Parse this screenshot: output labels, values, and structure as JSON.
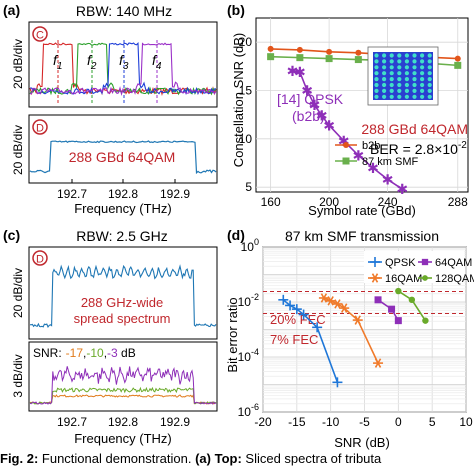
{
  "panels": {
    "a": {
      "letter": "(a)",
      "rbw": "RBW: 140 MHz",
      "top_badge": "C",
      "bottom_badge": "D",
      "ylabel_top": "20 dB/div",
      "ylabel_bottom": "20 dB/div",
      "xlabel": "Frequency (THz)",
      "xticks": [
        "192.7",
        "192.8",
        "192.9"
      ],
      "tones": [
        {
          "label": "f",
          "sub": "1",
          "color": "#d62728"
        },
        {
          "label": "f",
          "sub": "2",
          "color": "#2ca02c"
        },
        {
          "label": "f",
          "sub": "3",
          "color": "#1f3fd8"
        },
        {
          "label": "f",
          "sub": "4",
          "color": "#9b30c8"
        }
      ],
      "bottom_label": "288 GBd 64QAM",
      "bottom_label_color": "#c0272d",
      "trace_color": "#1f77b4"
    },
    "b": {
      "letter": "(b)",
      "xlabel": "Symbol rate (GBd)",
      "ylabel": "Constellation SNR (dB)",
      "xticks": [
        "160",
        "200",
        "240",
        "288"
      ],
      "yticks": [
        "5",
        "10",
        "15",
        "20"
      ],
      "annotation_qpsk_1": "[14] QPSK",
      "annotation_qpsk_2": "(b2b)",
      "annotation_qpsk_color": "#8e2fb8",
      "annotation_qam": "288 GBd 64QAM",
      "annotation_qam_color": "#c0272d",
      "ber_prefix": "BER = 2.8×10",
      "ber_exp": "-2"
    },
    "c": {
      "letter": "(c)",
      "rbw": "RBW: 2.5 GHz",
      "top_badge": "D",
      "ylabel_top": "20 dB/div",
      "ylabel_bottom": "3 dB/div",
      "xlabel": "Frequency (THz)",
      "xticks": [
        "192.7",
        "192.8",
        "192.9"
      ],
      "top_label_1": "288 GHz-wide",
      "top_label_2": "spread spectrum",
      "top_label_color": "#c0272d",
      "snr_prefix": "SNR:",
      "snr_values": [
        {
          "text": "-17",
          "color": "#e07a1a"
        },
        {
          "text": ",",
          "color": "#000000"
        },
        {
          "text": "-10",
          "color": "#6aaa2a"
        },
        {
          "text": ",",
          "color": "#000000"
        },
        {
          "text": "-3",
          "color": "#8e2fb8"
        },
        {
          "text": " dB",
          "color": "#000000"
        }
      ]
    },
    "d": {
      "letter": "(d)",
      "fec_20": "20% FEC",
      "fec_7": "7% FEC",
      "fec_color": "#c0272d"
    }
  },
  "caption": {
    "prefix": "Fig. 2:",
    "middle": " Functional demonstration. ",
    "bold": "(a) Top:",
    "suffix": " Sliced spectra of tributa"
  },
  "chart_data": [
    {
      "type": "line",
      "title": "",
      "xlabel": "Symbol rate (GBd)",
      "ylabel": "Constellation SNR (dB)",
      "xlim": [
        150,
        295
      ],
      "ylim": [
        4.5,
        22.5
      ],
      "grid": true,
      "legend_position": "center-right",
      "series": [
        {
          "name": "b2b",
          "color": "#e2551b",
          "marker": "circle",
          "x": [
            160,
            180,
            200,
            220,
            240,
            260,
            288
          ],
          "y": [
            19.3,
            19.2,
            19.0,
            18.9,
            18.7,
            18.5,
            18.3
          ]
        },
        {
          "name": "87 km SMF",
          "color": "#6ab04c",
          "marker": "square",
          "x": [
            160,
            180,
            200,
            220,
            240,
            260,
            288
          ],
          "y": [
            18.5,
            18.4,
            18.3,
            18.2,
            18.1,
            17.9,
            17.6
          ]
        },
        {
          "name": "[14] QPSK (b2b)",
          "color": "#8e2fb8",
          "marker": "star",
          "x": [
            175,
            180,
            185,
            190,
            195,
            200,
            210,
            220,
            230,
            240,
            250
          ],
          "y": [
            17.0,
            16.9,
            15.0,
            13.5,
            12.4,
            11.4,
            9.8,
            8.3,
            7.0,
            5.8,
            4.8
          ]
        }
      ]
    },
    {
      "type": "line",
      "title": "87 km SMF transmission",
      "xlabel": "SNR (dB)",
      "ylabel": "Bit error ratio",
      "xlim": [
        -20,
        10
      ],
      "ylim": [
        1e-06,
        1
      ],
      "yscale": "log",
      "xticks": [
        -20,
        -15,
        -10,
        -5,
        0,
        5,
        10
      ],
      "yticks": [
        "10^0",
        "10^-2",
        "10^-4",
        "10^-6"
      ],
      "grid": true,
      "legend_position": "top-right",
      "thresholds": [
        {
          "name": "20% FEC",
          "y": 0.024
        },
        {
          "name": "7% FEC",
          "y": 0.0038
        }
      ],
      "series": [
        {
          "name": "QPSK",
          "color": "#1f77d8",
          "marker": "plus",
          "x": [
            -17,
            -16,
            -15,
            -14,
            -12,
            -9
          ],
          "y": [
            0.012,
            0.0075,
            0.0055,
            0.0035,
            0.0012,
            1.2e-05
          ]
        },
        {
          "name": "16QAM",
          "color": "#f07a2a",
          "marker": "star",
          "x": [
            -11,
            -10,
            -9,
            -8,
            -6,
            -3
          ],
          "y": [
            0.014,
            0.011,
            0.0085,
            0.006,
            0.0022,
            6e-05
          ]
        },
        {
          "name": "64QAM",
          "color": "#8e2fb8",
          "marker": "square",
          "x": [
            -3,
            -1,
            0
          ],
          "y": [
            0.012,
            0.0055,
            0.0021
          ]
        },
        {
          "name": "128QAM",
          "color": "#6aaa2a",
          "marker": "circle",
          "x": [
            0,
            2,
            4
          ],
          "y": [
            0.025,
            0.012,
            0.0021
          ]
        }
      ]
    }
  ]
}
